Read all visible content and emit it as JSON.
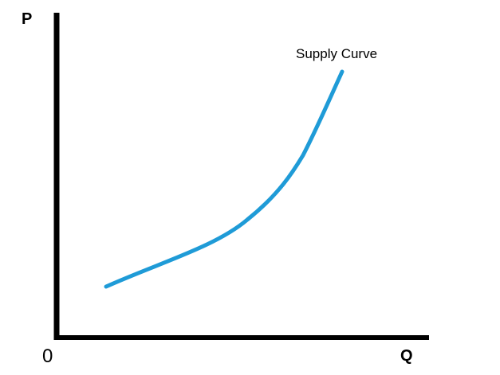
{
  "chart_data": {
    "type": "line",
    "title": "",
    "xlabel": "Q",
    "ylabel": "P",
    "origin_label": "0",
    "grid": false,
    "series": [
      {
        "name": "Supply Curve",
        "color": "#1f9bd7",
        "shape": "upward-sloping convex"
      }
    ]
  }
}
